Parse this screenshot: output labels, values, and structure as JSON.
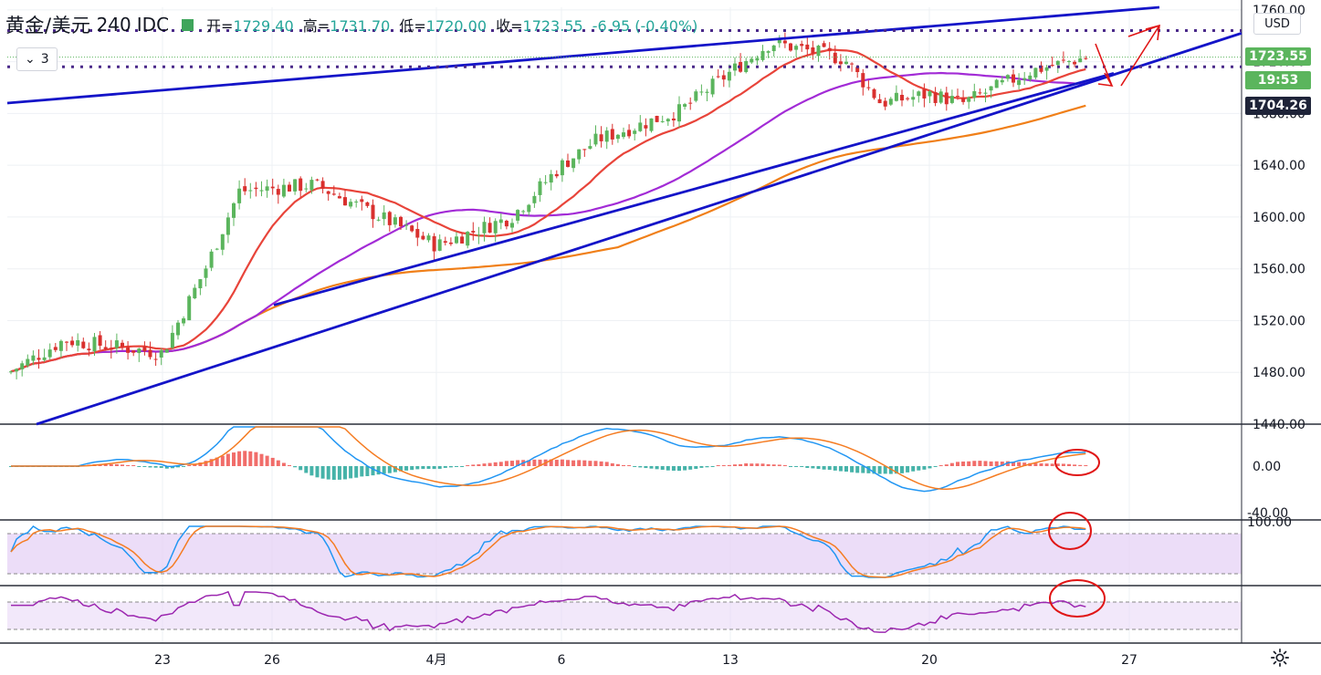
{
  "header": {
    "symbol": "黄金/美元",
    "timeframe": "240",
    "source": "IDC",
    "open_label": "开=",
    "open": "1729.40",
    "high_label": "高=",
    "high": "1731.70",
    "low_label": "低=",
    "low": "1720.00",
    "close_label": "收=",
    "close": "1723.55",
    "change": "-6.95 (-0.40%)"
  },
  "indicator_toggle": {
    "count": "3"
  },
  "currency": "USD",
  "price_labels": {
    "last_price": "1723.55",
    "countdown": "19:53",
    "level": "1704.26"
  },
  "colors": {
    "up_candle": "#5bb55d",
    "down_candle": "#d9302e",
    "trendline": "#1414c8",
    "ma_fast": "#e8443a",
    "ma_mid": "#a22bd6",
    "ma_slow": "#f07f18",
    "annotation": "#e01515",
    "macd_line": "#2196f3",
    "signal_line": "#f57c22",
    "rsi_line": "#9c27b0"
  },
  "chart_data": {
    "type": "candlestick",
    "instrument": "XAU/USD",
    "timeframe": "240",
    "y_axis": {
      "ticks": [
        "1760.00",
        "1720.00",
        "1680.00",
        "1640.00",
        "1600.00",
        "1560.00",
        "1520.00",
        "1480.00",
        "1440.00"
      ],
      "range": [
        1440,
        1762
      ]
    },
    "x_axis": {
      "ticks": [
        "23",
        "26",
        "4月",
        "6",
        "13",
        "20",
        "27"
      ]
    },
    "key_points": [
      {
        "date": "Mar 19",
        "close": 1480
      },
      {
        "date": "Mar 20",
        "close": 1505
      },
      {
        "date": "Mar 23",
        "close": 1495
      },
      {
        "date": "Mar 24",
        "close": 1560
      },
      {
        "date": "Mar 25",
        "close": 1620
      },
      {
        "date": "Mar 27",
        "close": 1625
      },
      {
        "date": "Mar 31",
        "close": 1590
      },
      {
        "date": "Apr 1",
        "close": 1578
      },
      {
        "date": "Apr 3",
        "close": 1600
      },
      {
        "date": "Apr 6",
        "close": 1640
      },
      {
        "date": "Apr 7",
        "close": 1660
      },
      {
        "date": "Apr 9",
        "close": 1682
      },
      {
        "date": "Apr 13",
        "close": 1712
      },
      {
        "date": "Apr 14",
        "close": 1735
      },
      {
        "date": "Apr 16",
        "close": 1722
      },
      {
        "date": "Apr 17",
        "close": 1688
      },
      {
        "date": "Apr 20",
        "close": 1695
      },
      {
        "date": "Apr 21",
        "close": 1688
      },
      {
        "date": "Apr 23",
        "close": 1713
      },
      {
        "date": "Apr 24",
        "close": 1723.55
      }
    ],
    "horizontal_levels": [
      1744,
      1716
    ],
    "last_price": 1723.55,
    "level_marker": 1704.26,
    "macd_axis_ticks": [
      "0.00",
      "-40.00"
    ],
    "stoch_axis_ticks": [
      "100.00"
    ]
  }
}
